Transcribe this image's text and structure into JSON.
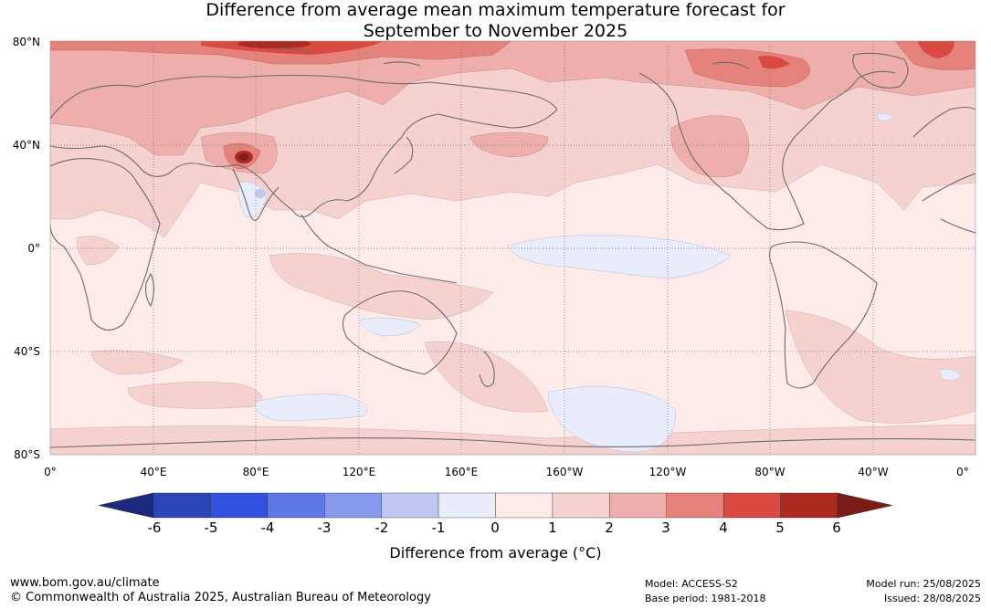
{
  "title": {
    "line1": "Difference from average mean maximum temperature forecast for",
    "line2": "September to November 2025"
  },
  "latitude_labels": [
    "80°N",
    "40°N",
    "0°",
    "40°S",
    "80°S"
  ],
  "longitude_labels": [
    "0°",
    "40°E",
    "80°E",
    "120°E",
    "160°E",
    "160°W",
    "120°W",
    "80°W",
    "40°W",
    "0°"
  ],
  "colorbar": {
    "ticks": [
      "-6",
      "-5",
      "-4",
      "-3",
      "-2",
      "-1",
      "0",
      "1",
      "2",
      "3",
      "4",
      "5",
      "6"
    ],
    "colors": [
      "#1b2a7a",
      "#2b44b6",
      "#3050e0",
      "#5b78e4",
      "#8899ec",
      "#c1c8f2",
      "#e9ecfa",
      "#fcebe9",
      "#f5d2cf",
      "#eeaeab",
      "#e6827c",
      "#da4a40",
      "#ac2a22",
      "#7b1c16"
    ],
    "label": "Difference from average (°C)"
  },
  "footer": {
    "website": "www.bom.gov.au/climate",
    "copyright": "© Commonwealth of Australia 2025, Australian Bureau of Meteorology",
    "model": "Model: ACCESS-S2",
    "base_period": "Base period: 1981-2018",
    "model_run": "Model run: 25/08/2025",
    "issued": "Issued: 28/08/2025"
  }
}
